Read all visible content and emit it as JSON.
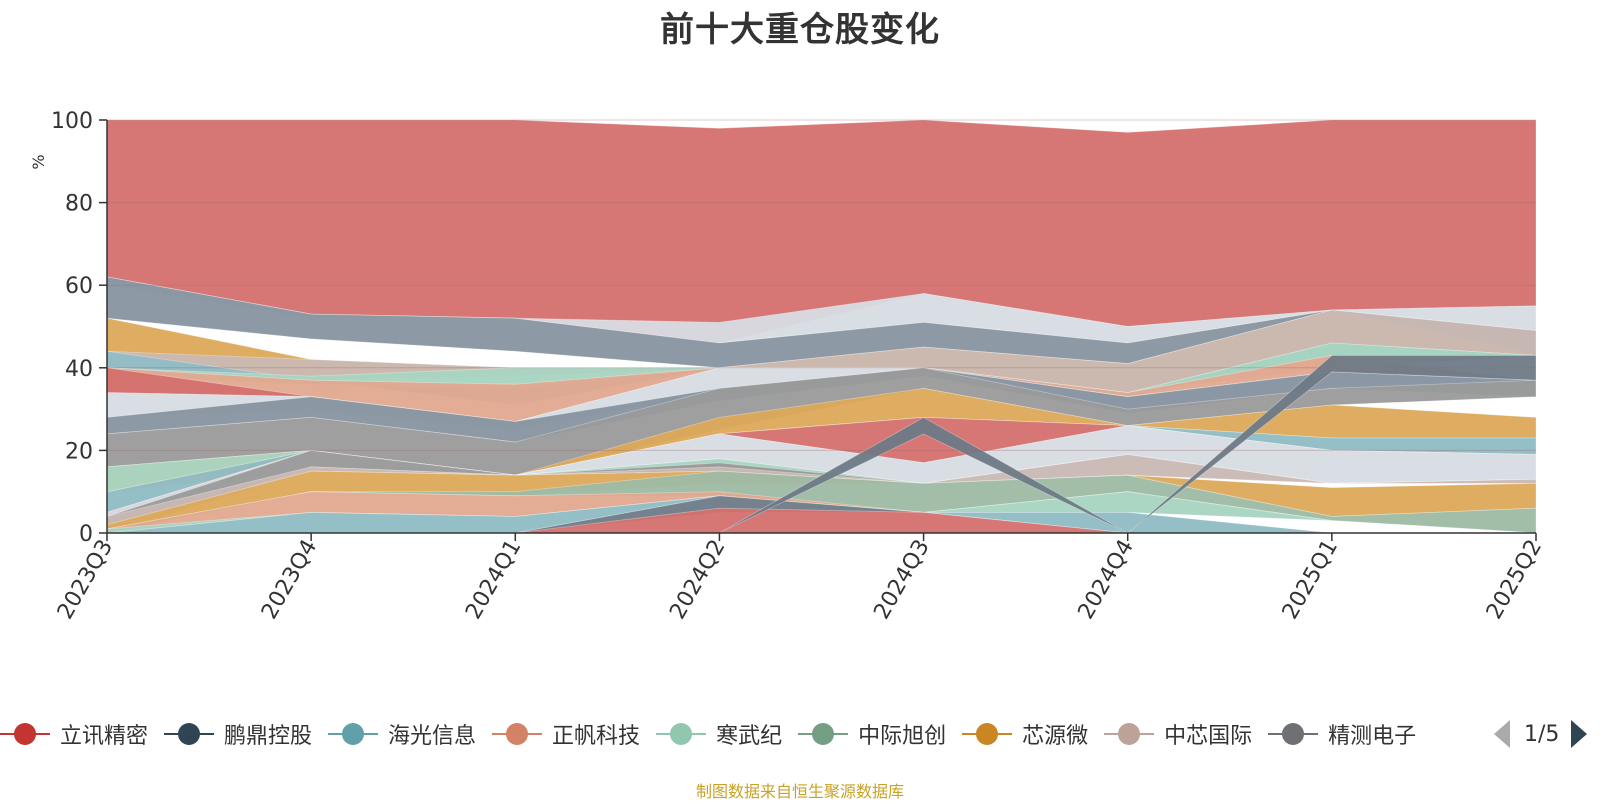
{
  "chart_data": {
    "type": "area",
    "title": "前十大重仓股变化",
    "ylabel": "%",
    "ylim": [
      0,
      100
    ],
    "yticks": [
      0,
      20,
      40,
      60,
      80,
      100
    ],
    "categories": [
      "2023Q3",
      "2023Q4",
      "2024Q1",
      "2024Q2",
      "2024Q3",
      "2024Q4",
      "2025Q1",
      "2025Q2"
    ],
    "stacked": "streamgraph-like themeRiver",
    "series": [
      {
        "name": "立讯精密",
        "color": "#c23531"
      },
      {
        "name": "鹏鼎控股",
        "color": "#2f4554"
      },
      {
        "name": "海光信息",
        "color": "#61a0a8"
      },
      {
        "name": "正帆科技",
        "color": "#d48265"
      },
      {
        "name": "寒武纪",
        "color": "#91c7ae"
      },
      {
        "name": "中际旭创",
        "color": "#749f83"
      },
      {
        "name": "芯源微",
        "color": "#ca8622"
      },
      {
        "name": "中芯国际",
        "color": "#bda29a"
      },
      {
        "name": "精测电子",
        "color": "#6e7074"
      }
    ],
    "legend_position": "bottom",
    "grid": true
  },
  "legend": {
    "page_text": "1/5"
  },
  "footer": {
    "source": "制图数据来自恒生聚源数据库"
  }
}
